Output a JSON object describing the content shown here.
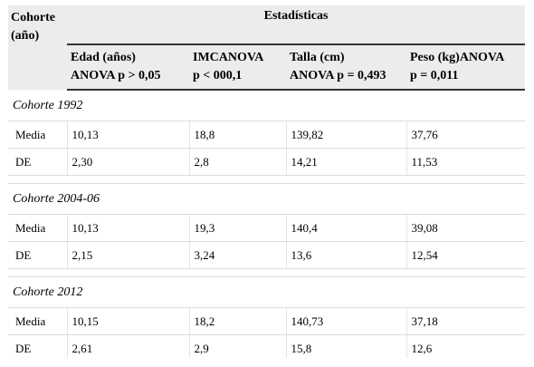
{
  "header": {
    "cohorte_label": "Cohorte (año)",
    "estadisticas_label": "Estadísticas",
    "columns": [
      {
        "line1": "Edad (años)",
        "line2": "ANOVA p > 0,05"
      },
      {
        "line1": "IMCANOVA",
        "line2": "p < 000,1"
      },
      {
        "line1": "Talla (cm)",
        "line2": "ANOVA p = 0,493"
      },
      {
        "line1": "Peso (kg)ANOVA",
        "line2": "p = 0,011"
      }
    ]
  },
  "groups": [
    {
      "title": "Cohorte 1992",
      "rows": [
        {
          "label": "Media",
          "values": [
            "10,13",
            "18,8",
            "139,82",
            "37,76"
          ]
        },
        {
          "label": "DE",
          "values": [
            "2,30",
            "2,8",
            "14,21",
            "11,53"
          ]
        }
      ]
    },
    {
      "title": "Cohorte 2004-06",
      "rows": [
        {
          "label": "Media",
          "values": [
            "10,13",
            "19,3",
            "140,4",
            "39,08"
          ]
        },
        {
          "label": "DE",
          "values": [
            "2,15",
            "3,24",
            "13,6",
            "12,54"
          ]
        }
      ]
    },
    {
      "title": "Cohorte 2012",
      "rows": [
        {
          "label": "Media",
          "values": [
            "10,15",
            "18,2",
            "140,73",
            "37,18"
          ]
        },
        {
          "label": "DE",
          "values": [
            "2,61",
            "2,9",
            "15,8",
            "12,6"
          ]
        }
      ]
    }
  ]
}
